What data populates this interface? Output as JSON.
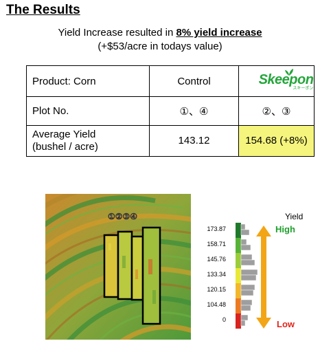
{
  "heading": "The Results",
  "subtitle": {
    "prefix": "Yield Increase resulted in ",
    "emphasis": "8% yield increase",
    "line2": "(+$53/acre in todays value)"
  },
  "table": {
    "header": {
      "label": "Product: Corn",
      "control": "Control",
      "treatment_logo": "Skeepon",
      "treatment_logo_sub": "スキーポン"
    },
    "plot_row": {
      "label": "Plot No.",
      "control": "①、④",
      "treatment": "②、③"
    },
    "yield_row": {
      "label_line1": "Average Yield",
      "label_line2": "(bushel / acre)",
      "control": "143.12",
      "treatment": "154.68 (+8%)"
    }
  },
  "map": {
    "plot_labels": "①②③④"
  },
  "legend": {
    "title": "Yield",
    "high": "High",
    "low": "Low",
    "ticks": [
      "173.87",
      "158.71",
      "145.76",
      "133.34",
      "120.15",
      "104.48",
      "0"
    ],
    "colors": {
      "high": "#1e9e2c",
      "low": "#e0241b",
      "arrow": "#f2a516",
      "highlight": "#f5f57e",
      "brand": "#23a53a"
    }
  }
}
